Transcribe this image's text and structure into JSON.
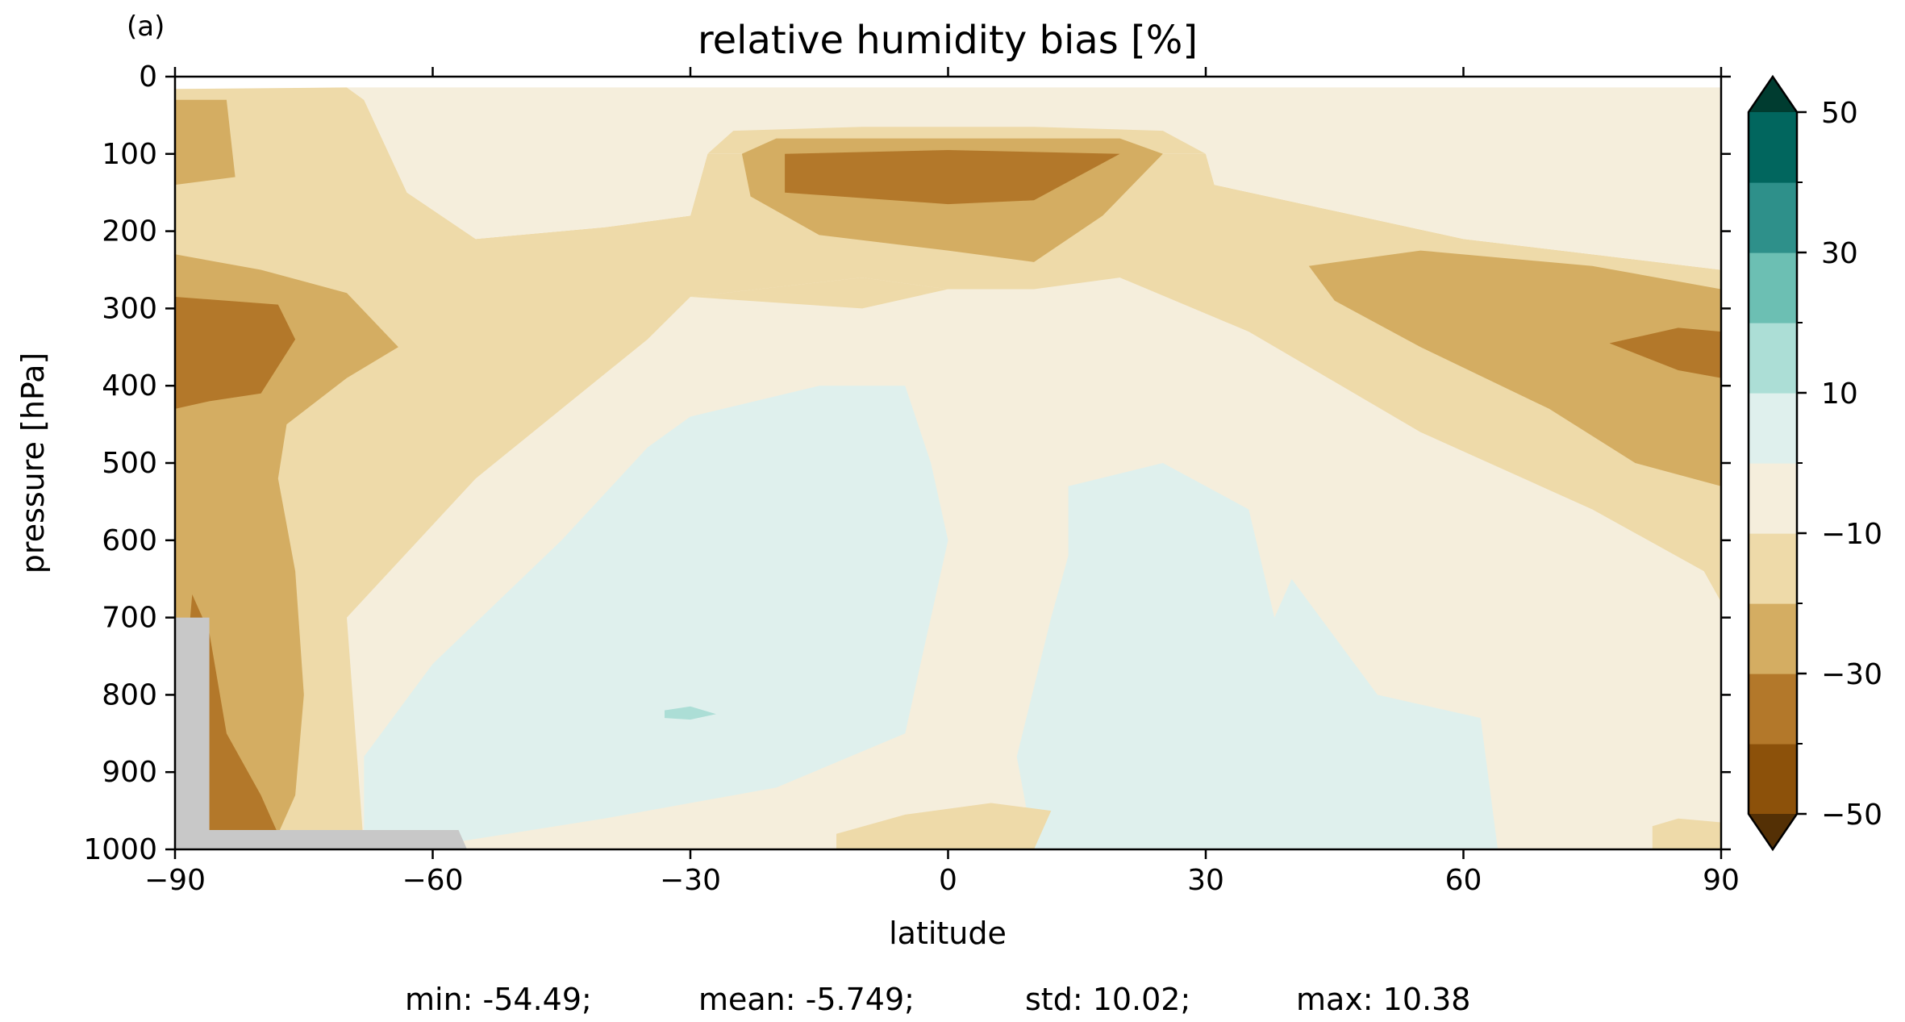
{
  "chart_data": {
    "type": "filled-contour",
    "panel_label": "(a)",
    "title": "relative humidity bias [%]",
    "xlabel": "latitude",
    "ylabel": "pressure [hPa]",
    "xlim": [
      -90,
      90
    ],
    "ylim": [
      1000,
      0
    ],
    "x_ticks": [
      -90,
      -60,
      -30,
      0,
      30,
      60,
      90
    ],
    "x_tick_labels": [
      "−90",
      "−60",
      "−30",
      "0",
      "30",
      "60",
      "90"
    ],
    "y_ticks": [
      0,
      100,
      200,
      300,
      400,
      500,
      600,
      700,
      800,
      900,
      1000
    ],
    "y_tick_labels": [
      "0",
      "100",
      "200",
      "300",
      "400",
      "500",
      "600",
      "700",
      "800",
      "900",
      "1000"
    ],
    "levels": [
      -50,
      -40,
      -30,
      -20,
      -10,
      0,
      10,
      20,
      30,
      40,
      50
    ],
    "colors": {
      "under": "#543005",
      "-50_-40": "#8c510a",
      "-40_-30": "#b3782a",
      "-30_-20": "#d4ad62",
      "-20_-10": "#eedaa9",
      "-10_0": "#f5eedc",
      "0_10": "#dff0ed",
      "10_20": "#acded6",
      "20_30": "#6cbfb3",
      "30_40": "#2e908a",
      "40_50": "#01665e",
      "over": "#003c30",
      "missing": "#c8c8c8"
    },
    "regions": [
      {
        "band": "-20_-10",
        "points": [
          [
            -90,
            16
          ],
          [
            -70,
            14
          ],
          [
            -68,
            30
          ],
          [
            -63,
            150
          ],
          [
            -55,
            210
          ],
          [
            -40,
            195
          ],
          [
            -30,
            180
          ],
          [
            -28,
            100
          ],
          [
            30,
            100
          ],
          [
            31,
            140
          ],
          [
            60,
            210
          ],
          [
            90,
            250
          ],
          [
            90,
            1000
          ],
          [
            -90,
            1000
          ]
        ]
      },
      {
        "band": "-10_0",
        "points": [
          [
            -70,
            14
          ],
          [
            90,
            14
          ],
          [
            90,
            250
          ],
          [
            60,
            210
          ],
          [
            31,
            140
          ],
          [
            30,
            100
          ],
          [
            -28,
            100
          ],
          [
            -30,
            180
          ],
          [
            -40,
            195
          ],
          [
            -55,
            210
          ],
          [
            -63,
            150
          ],
          [
            -68,
            30
          ]
        ]
      },
      {
        "band": "-10_0",
        "points": [
          [
            -30,
            285
          ],
          [
            -10,
            260
          ],
          [
            0,
            275
          ],
          [
            10,
            275
          ],
          [
            20,
            260
          ],
          [
            35,
            330
          ],
          [
            55,
            460
          ],
          [
            75,
            560
          ],
          [
            88,
            640
          ],
          [
            90,
            680
          ],
          [
            90,
            1000
          ],
          [
            -68,
            1000
          ],
          [
            -70,
            700
          ],
          [
            -55,
            520
          ],
          [
            -45,
            430
          ],
          [
            -35,
            340
          ]
        ]
      },
      {
        "band": "-20_-10",
        "points": [
          [
            -28,
            100
          ],
          [
            -25,
            70
          ],
          [
            -10,
            65
          ],
          [
            10,
            65
          ],
          [
            25,
            70
          ],
          [
            30,
            100
          ],
          [
            0,
            100
          ]
        ]
      },
      {
        "band": "-20_-10",
        "points": [
          [
            -30,
            285
          ],
          [
            -10,
            260
          ],
          [
            0,
            275
          ],
          [
            -10,
            300
          ]
        ]
      },
      {
        "band": "0_10",
        "points": [
          [
            -30,
            440
          ],
          [
            -15,
            400
          ],
          [
            -5,
            400
          ],
          [
            -2,
            500
          ],
          [
            0,
            600
          ],
          [
            -3,
            750
          ],
          [
            -5,
            850
          ],
          [
            -20,
            920
          ],
          [
            -40,
            960
          ],
          [
            -57,
            990
          ],
          [
            -68,
            1000
          ],
          [
            -68,
            880
          ],
          [
            -60,
            760
          ],
          [
            -45,
            600
          ],
          [
            -35,
            480
          ]
        ]
      },
      {
        "band": "0_10",
        "points": [
          [
            14,
            530
          ],
          [
            25,
            500
          ],
          [
            35,
            560
          ],
          [
            38,
            700
          ],
          [
            40,
            650
          ],
          [
            50,
            800
          ],
          [
            62,
            830
          ],
          [
            64,
            1000
          ],
          [
            10,
            1000
          ],
          [
            8,
            880
          ],
          [
            12,
            700
          ],
          [
            14,
            620
          ]
        ]
      },
      {
        "band": "10_20",
        "points": [
          [
            -33,
            820
          ],
          [
            -30,
            815
          ],
          [
            -27,
            825
          ],
          [
            -30,
            832
          ],
          [
            -33,
            830
          ]
        ]
      },
      {
        "band": "-30_-20",
        "points": [
          [
            -90,
            30
          ],
          [
            -84,
            30
          ],
          [
            -83,
            130
          ],
          [
            -90,
            140
          ]
        ]
      },
      {
        "band": "-30_-20",
        "points": [
          [
            -90,
            230
          ],
          [
            -80,
            250
          ],
          [
            -70,
            280
          ],
          [
            -64,
            350
          ],
          [
            -70,
            390
          ],
          [
            -77,
            450
          ],
          [
            -78,
            520
          ],
          [
            -76,
            640
          ],
          [
            -75,
            800
          ],
          [
            -76,
            930
          ],
          [
            -78,
            980
          ],
          [
            -90,
            980
          ]
        ]
      },
      {
        "band": "-40_-30",
        "points": [
          [
            -90,
            285
          ],
          [
            -78,
            295
          ],
          [
            -76,
            340
          ],
          [
            -80,
            410
          ],
          [
            -86,
            420
          ],
          [
            -90,
            430
          ]
        ]
      },
      {
        "band": "-40_-30",
        "points": [
          [
            -88,
            670
          ],
          [
            -86,
            720
          ],
          [
            -84,
            850
          ],
          [
            -80,
            930
          ],
          [
            -78,
            980
          ],
          [
            -86,
            980
          ],
          [
            -89,
            800
          ]
        ]
      },
      {
        "band": "-50_-40",
        "points": [
          [
            -87,
            850
          ],
          [
            -86,
            900
          ],
          [
            -87,
            930
          ]
        ]
      },
      {
        "band": "-30_-20",
        "points": [
          [
            -24,
            100
          ],
          [
            -20,
            80
          ],
          [
            20,
            80
          ],
          [
            25,
            100
          ],
          [
            18,
            180
          ],
          [
            10,
            240
          ],
          [
            0,
            225
          ],
          [
            -15,
            205
          ],
          [
            -23,
            155
          ]
        ]
      },
      {
        "band": "-40_-30",
        "points": [
          [
            -19,
            100
          ],
          [
            0,
            95
          ],
          [
            20,
            100
          ],
          [
            10,
            160
          ],
          [
            0,
            165
          ],
          [
            -19,
            150
          ]
        ]
      },
      {
        "band": "-30_-20",
        "points": [
          [
            42,
            245
          ],
          [
            55,
            225
          ],
          [
            75,
            245
          ],
          [
            90,
            275
          ],
          [
            90,
            530
          ],
          [
            80,
            500
          ],
          [
            70,
            430
          ],
          [
            55,
            350
          ],
          [
            45,
            290
          ]
        ]
      },
      {
        "band": "-40_-30",
        "points": [
          [
            77,
            345
          ],
          [
            85,
            325
          ],
          [
            90,
            330
          ],
          [
            90,
            390
          ],
          [
            85,
            380
          ]
        ]
      },
      {
        "band": "-20_-10",
        "points": [
          [
            -13,
            980
          ],
          [
            -5,
            955
          ],
          [
            5,
            940
          ],
          [
            12,
            950
          ],
          [
            10,
            1000
          ],
          [
            -13,
            1000
          ]
        ]
      },
      {
        "band": "-20_-10",
        "points": [
          [
            82,
            970
          ],
          [
            85,
            960
          ],
          [
            90,
            965
          ],
          [
            90,
            1000
          ],
          [
            82,
            1000
          ]
        ]
      },
      {
        "band": "missing",
        "points": [
          [
            -90,
            700
          ],
          [
            -86,
            700
          ],
          [
            -86,
            975
          ],
          [
            -57,
            975
          ],
          [
            -56,
            1000
          ],
          [
            -90,
            1000
          ]
        ]
      }
    ],
    "stats": {
      "min": "min: -54.49;",
      "mean": "mean: -5.749;",
      "std": "std: 10.02;",
      "max": "max: 10.38"
    },
    "colorbar": {
      "extend": "both",
      "tick_values": [
        50,
        30,
        10,
        -10,
        -30,
        -50
      ],
      "tick_labels": [
        "50",
        "30",
        "10",
        "−10",
        "−30",
        "−50"
      ]
    }
  }
}
